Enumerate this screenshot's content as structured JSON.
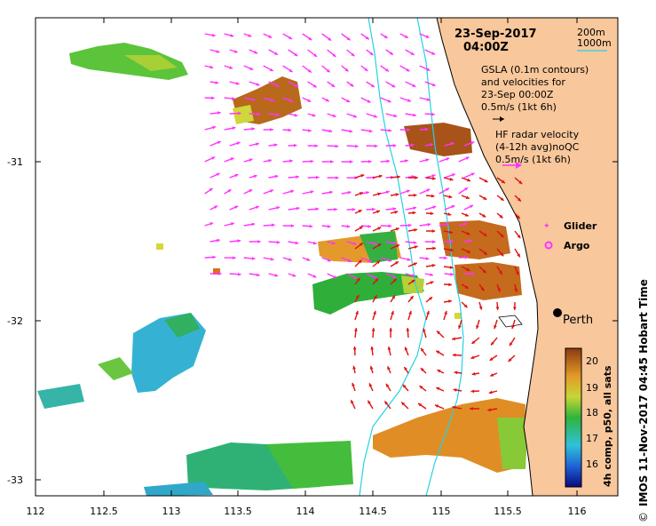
{
  "map": {
    "title_date": "23-Sep-2017",
    "title_time": "04:00Z",
    "legend_isobaths": [
      "200m",
      "1000m"
    ],
    "gsla_text": [
      "GSLA (0.1m contours)",
      "and velocities for",
      "23-Sep 00:00Z",
      "0.5m/s (1kt 6h)"
    ],
    "hf_text": [
      "HF radar velocity",
      "(4-12h avg)noQC",
      "0.5m/s (1kt 6h)"
    ],
    "glider_label": "Glider",
    "argo_label": "Argo",
    "city_label": "Perth",
    "credit": "IMOS 11-Nov-2017 04:45 Hobart Time",
    "copyright_symbol": "©",
    "colorbar_label": "4h comp, p50, all sats",
    "colorbar_ticks": [
      "16",
      "17",
      "18",
      "19",
      "20"
    ],
    "x_ticks": [
      "112",
      "112.5",
      "113",
      "113.5",
      "114",
      "114.5",
      "115",
      "115.5",
      "116"
    ],
    "y_ticks": [
      "-31",
      "-32",
      "-33"
    ],
    "colors": {
      "land": "#f8c79b",
      "isobath": "#22d3e6",
      "gsla_arrow": "#ff33ff",
      "hf_arrow": "#e01010",
      "sst_warm": "#d6741a",
      "sst_green": "#32b432",
      "sst_cyan": "#35b6d6"
    }
  }
}
